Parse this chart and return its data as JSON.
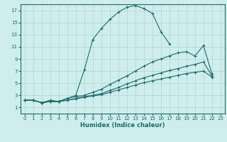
{
  "xlabel": "Humidex (Indice chaleur)",
  "ylabel": "",
  "bg_color": "#d0eded",
  "line_color": "#1a6b6b",
  "grid_color": "#b0d4d4",
  "xlim": [
    -0.5,
    23.5
  ],
  "ylim": [
    0,
    18
  ],
  "xticks": [
    0,
    1,
    2,
    3,
    4,
    5,
    6,
    7,
    8,
    9,
    10,
    11,
    12,
    13,
    14,
    15,
    16,
    17,
    18,
    19,
    20,
    21,
    22,
    23
  ],
  "yticks": [
    1,
    3,
    5,
    7,
    9,
    11,
    13,
    15,
    17
  ],
  "series": [
    {
      "x": [
        0,
        1,
        2,
        3,
        4,
        5,
        6,
        7,
        8,
        9,
        10,
        11,
        12,
        13,
        14,
        15,
        16,
        17
      ],
      "y": [
        2.2,
        2.2,
        1.8,
        2.2,
        2.0,
        2.5,
        3.0,
        7.2,
        12.2,
        14.0,
        15.5,
        16.7,
        17.5,
        17.8,
        17.3,
        16.5,
        13.5,
        11.5
      ]
    },
    {
      "x": [
        0,
        1,
        2,
        3,
        4,
        5,
        6,
        7,
        8,
        9,
        10,
        11,
        12,
        13,
        14,
        15,
        16,
        17,
        18,
        19,
        20,
        21,
        22
      ],
      "y": [
        2.2,
        2.2,
        1.8,
        2.0,
        2.0,
        2.5,
        2.8,
        3.0,
        3.5,
        4.0,
        4.8,
        5.5,
        6.2,
        7.0,
        7.8,
        8.5,
        9.0,
        9.5,
        10.0,
        10.2,
        9.5,
        11.2,
        6.5
      ]
    },
    {
      "x": [
        0,
        1,
        2,
        3,
        4,
        5,
        6,
        7,
        8,
        9,
        10,
        11,
        12,
        13,
        14,
        15,
        16,
        17,
        18,
        19,
        20,
        21,
        22
      ],
      "y": [
        2.2,
        2.2,
        1.8,
        2.0,
        2.0,
        2.2,
        2.5,
        2.8,
        3.0,
        3.3,
        3.8,
        4.3,
        4.9,
        5.4,
        5.9,
        6.3,
        6.7,
        7.1,
        7.4,
        7.8,
        8.1,
        8.5,
        6.2
      ]
    },
    {
      "x": [
        0,
        1,
        2,
        3,
        4,
        5,
        6,
        7,
        8,
        9,
        10,
        11,
        12,
        13,
        14,
        15,
        16,
        17,
        18,
        19,
        20,
        21,
        22
      ],
      "y": [
        2.2,
        2.2,
        1.8,
        2.0,
        2.0,
        2.2,
        2.4,
        2.7,
        2.9,
        3.1,
        3.5,
        3.9,
        4.3,
        4.7,
        5.1,
        5.4,
        5.7,
        6.0,
        6.3,
        6.6,
        6.8,
        7.0,
        6.0
      ]
    }
  ]
}
